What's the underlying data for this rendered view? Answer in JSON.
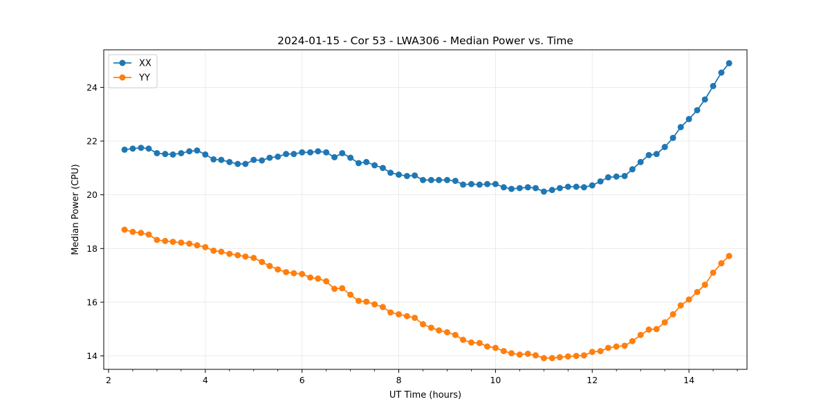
{
  "chart_data": {
    "type": "line",
    "title": "2024-01-15 - Cor 53 - LWA306 - Median Power vs. Time",
    "xlabel": "UT Time (hours)",
    "ylabel": "Median Power (CPU)",
    "xlim": [
      1.9,
      15.2
    ],
    "ylim": [
      13.5,
      25.4
    ],
    "xticks": [
      2,
      4,
      6,
      8,
      10,
      12,
      14
    ],
    "xtick_labels": [
      "2",
      "4",
      "6",
      "8",
      "10",
      "12",
      "14"
    ],
    "yticks": [
      14,
      16,
      18,
      20,
      22,
      24
    ],
    "ytick_labels": [
      "14",
      "16",
      "18",
      "20",
      "22",
      "24"
    ],
    "grid": true,
    "legend_position": "top-left",
    "x": [
      2.33,
      2.5,
      2.67,
      2.83,
      3.0,
      3.17,
      3.33,
      3.5,
      3.67,
      3.83,
      4.0,
      4.17,
      4.33,
      4.5,
      4.67,
      4.83,
      5.0,
      5.17,
      5.33,
      5.5,
      5.67,
      5.83,
      6.0,
      6.17,
      6.33,
      6.5,
      6.67,
      6.83,
      7.0,
      7.17,
      7.33,
      7.5,
      7.67,
      7.83,
      8.0,
      8.17,
      8.33,
      8.5,
      8.67,
      8.83,
      9.0,
      9.17,
      9.33,
      9.5,
      9.67,
      9.83,
      10.0,
      10.17,
      10.33,
      10.5,
      10.67,
      10.83,
      11.0,
      11.17,
      11.33,
      11.5,
      11.67,
      11.83,
      12.0,
      12.17,
      12.33,
      12.5,
      12.67,
      12.83,
      13.0,
      13.17,
      13.33,
      13.5,
      13.67,
      13.83,
      14.0,
      14.17,
      14.33,
      14.5,
      14.67,
      14.83
    ],
    "series": [
      {
        "name": "XX",
        "color": "#1f77b4",
        "values": [
          21.68,
          21.72,
          21.75,
          21.72,
          21.55,
          21.52,
          21.5,
          21.55,
          21.62,
          21.65,
          21.5,
          21.32,
          21.3,
          21.22,
          21.15,
          21.15,
          21.3,
          21.28,
          21.38,
          21.42,
          21.52,
          21.52,
          21.58,
          21.58,
          21.62,
          21.58,
          21.4,
          21.55,
          21.38,
          21.18,
          21.22,
          21.1,
          21.0,
          20.82,
          20.75,
          20.7,
          20.72,
          20.55,
          20.55,
          20.55,
          20.55,
          20.52,
          20.38,
          20.4,
          20.38,
          20.4,
          20.4,
          20.28,
          20.22,
          20.25,
          20.28,
          20.25,
          20.12,
          20.18,
          20.25,
          20.3,
          20.3,
          20.28,
          20.35,
          20.5,
          20.65,
          20.68,
          20.7,
          20.95,
          21.22,
          21.48,
          21.52,
          21.78,
          22.12,
          22.52,
          22.82,
          23.15,
          23.55,
          24.05,
          24.55,
          24.9
        ]
      },
      {
        "name": "YY",
        "color": "#ff7f0e",
        "values": [
          18.7,
          18.62,
          18.58,
          18.52,
          18.32,
          18.28,
          18.25,
          18.22,
          18.18,
          18.12,
          18.05,
          17.92,
          17.88,
          17.8,
          17.75,
          17.7,
          17.65,
          17.5,
          17.35,
          17.22,
          17.12,
          17.08,
          17.05,
          16.92,
          16.88,
          16.78,
          16.5,
          16.52,
          16.28,
          16.05,
          16.02,
          15.92,
          15.82,
          15.62,
          15.55,
          15.48,
          15.42,
          15.18,
          15.05,
          14.95,
          14.88,
          14.78,
          14.6,
          14.5,
          14.48,
          14.35,
          14.3,
          14.18,
          14.1,
          14.05,
          14.08,
          14.02,
          13.92,
          13.92,
          13.95,
          13.98,
          14.0,
          14.02,
          14.15,
          14.18,
          14.3,
          14.35,
          14.38,
          14.55,
          14.78,
          14.98,
          15.0,
          15.25,
          15.55,
          15.88,
          16.1,
          16.38,
          16.65,
          17.1,
          17.45,
          17.72
        ]
      }
    ]
  }
}
